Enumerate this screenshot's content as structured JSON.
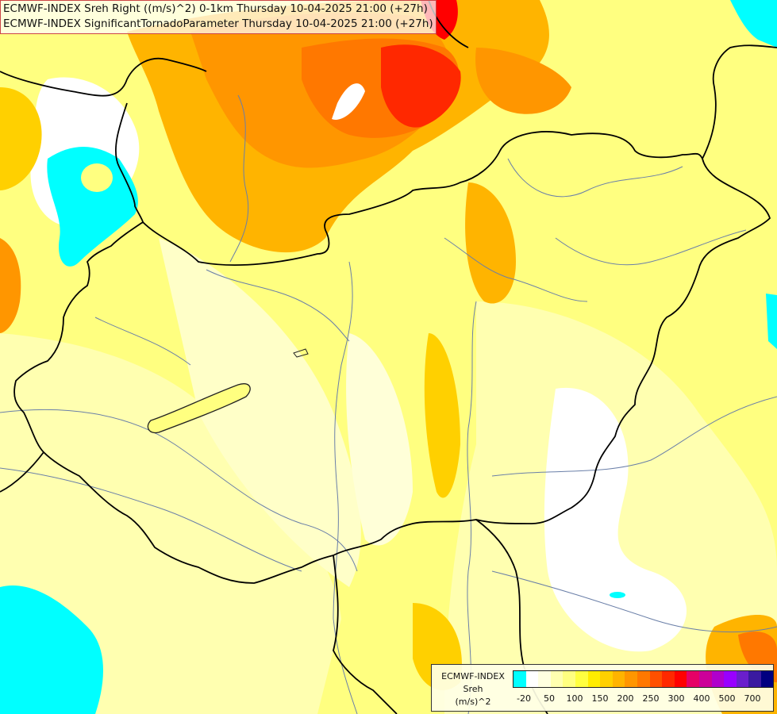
{
  "title": {
    "line1": "ECMWF-INDEX Sreh Right ((m/s)^2) 0-1km Thursday 10-04-2025 21:00 (+27h)",
    "line2": "ECMWF-INDEX SignificantTornadoParameter Thursday 10-04-2025 21:00 (+27h)"
  },
  "legend": {
    "line1": "ECMWF-INDEX",
    "line2": "Sreh",
    "line3": "(m/s)^2",
    "colors": [
      "#00ffff",
      "#ffffff",
      "#ffffe0",
      "#ffffb0",
      "#ffff80",
      "#ffff40",
      "#ffec00",
      "#ffd000",
      "#ffb400",
      "#ff9600",
      "#ff7800",
      "#ff5000",
      "#ff2800",
      "#ff0000",
      "#e60066",
      "#cc0099",
      "#b000cc",
      "#9900ff",
      "#6a1fcc",
      "#3a1aa0",
      "#000080"
    ],
    "ticks": [
      "-20",
      "50",
      "100",
      "150",
      "200",
      "250",
      "300",
      "400",
      "500",
      "700"
    ]
  }
}
